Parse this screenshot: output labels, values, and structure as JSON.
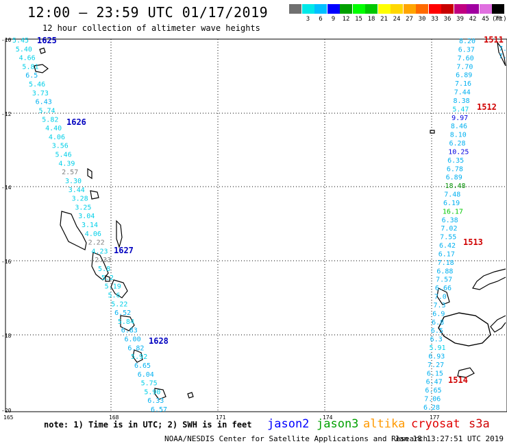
{
  "header": {
    "title": "12:00 – 23:59 UTC 01/17/2019",
    "subtitle": "12 hour collection of altimeter wave heights"
  },
  "legend": {
    "unit": "(ft)",
    "swatches": [
      {
        "color": "#707070",
        "label": ""
      },
      {
        "color": "#00e8e8",
        "label": "3"
      },
      {
        "color": "#00bfff",
        "label": "6"
      },
      {
        "color": "#0000ff",
        "label": "9"
      },
      {
        "color": "#00a000",
        "label": "12"
      },
      {
        "color": "#00ff00",
        "label": "15"
      },
      {
        "color": "#00c800",
        "label": "18"
      },
      {
        "color": "#ffff00",
        "label": "21"
      },
      {
        "color": "#ffd700",
        "label": "24"
      },
      {
        "color": "#ffa500",
        "label": "27"
      },
      {
        "color": "#ff6a00",
        "label": "30"
      },
      {
        "color": "#ff0000",
        "label": "33"
      },
      {
        "color": "#c80000",
        "label": "36"
      },
      {
        "color": "#c00080",
        "label": "39"
      },
      {
        "color": "#a000a0",
        "label": "42"
      },
      {
        "color": "#e070e0",
        "label": "45"
      },
      {
        "color": "#000000",
        "label": "70"
      }
    ]
  },
  "map": {
    "lon_ticks": [
      "165",
      "168",
      "171",
      "174",
      "177"
    ],
    "lat_ticks": [
      "-10",
      "-12",
      "-14",
      "-16",
      "-18",
      "-20"
    ],
    "tracks": [
      {
        "label": "1625",
        "color": "#0000c0",
        "pos": "left"
      },
      {
        "label": "1626",
        "color": "#0000c0",
        "pos": "left"
      },
      {
        "label": "1627",
        "color": "#0000c0",
        "pos": "left"
      },
      {
        "label": "1628",
        "color": "#0000c0",
        "pos": "left"
      },
      {
        "label": "1511",
        "color": "#d00000",
        "pos": "right"
      },
      {
        "label": "1512",
        "color": "#d00000",
        "pos": "right"
      },
      {
        "label": "1513",
        "color": "#d00000",
        "pos": "right"
      },
      {
        "label": "1514",
        "color": "#d00000",
        "pos": "right"
      }
    ],
    "left_values": [
      "5.45",
      "5.40",
      "4.66",
      "5.81",
      "6.5",
      "5.46",
      "3.73",
      "6.43",
      "5.74",
      "5.82",
      "4.40",
      "4.06",
      "3.56",
      "5.46",
      "4.39",
      "2.57",
      "3.30",
      "3.44",
      "3.28",
      "3.25",
      "3.04",
      "3.14",
      "4.06",
      "2.22",
      "4.23",
      "2.33",
      "5.8",
      "5.2",
      "5.19",
      "5.6",
      "5.22",
      "6.52",
      "5.84",
      "6.83",
      "6.00",
      "6.82",
      "5.92",
      "6.65",
      "6.04",
      "5.75",
      "5.90",
      "6.33",
      "6.57"
    ],
    "right_values": [
      "8.20",
      "6.37",
      "7.60",
      "7.70",
      "6.89",
      "7.16",
      "7.44",
      "8.38",
      "5.47",
      "9.97",
      "8.46",
      "8.10",
      "6.28",
      "10.25",
      "6.35",
      "6.78",
      "6.89",
      "18.48",
      "7.48",
      "6.19",
      "16.17",
      "6.38",
      "7.02",
      "7.55",
      "6.42",
      "6.17",
      "7.18",
      "6.88",
      "7.57",
      "6.66",
      "7.0",
      "7.3",
      "6.9",
      "6.8",
      "6.5",
      "6.3",
      "5.91",
      "6.93",
      "7.27",
      "6.15",
      "6.47",
      "6.65",
      "7.06",
      "6.28"
    ],
    "right_partial": [
      "7.5",
      "7.8"
    ]
  },
  "footer": {
    "note": "note: 1) Time is in UTC; 2) SWH is in feet",
    "satellites": [
      {
        "name": "jason2",
        "color": "#0000ff"
      },
      {
        "name": "jason3",
        "color": "#00a000"
      },
      {
        "name": "altika",
        "color": "#ff9900"
      },
      {
        "name": "cryosat",
        "color": "#e00000"
      },
      {
        "name": "s3a",
        "color": "#d00000"
      }
    ],
    "credit": "NOAA/NESDIS Center for Satellite Applications and Research",
    "timestamp": "Jan 18 13:27:51 UTC 2019"
  }
}
